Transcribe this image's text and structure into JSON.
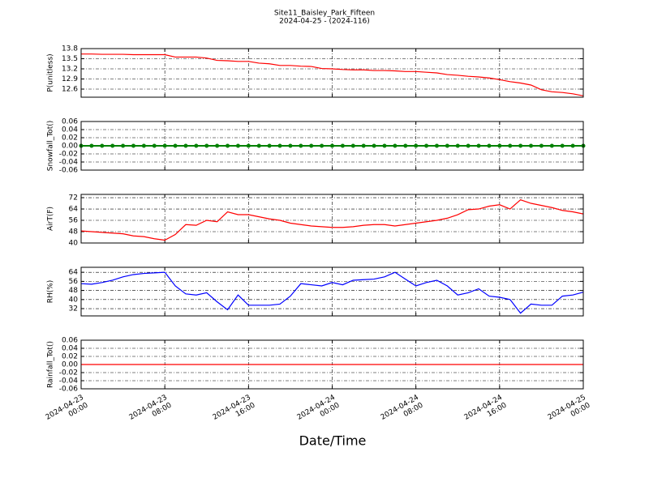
{
  "title": "Site11_Baisley_Park_Fifteen",
  "subtitle": "2024-04-25 - (2024-116)",
  "xlabel": "Date/Time",
  "chart_data": [
    {
      "type": "line",
      "ylabel": "P(unitless)",
      "ylim": [
        12.36,
        13.8
      ],
      "yticks": [
        12.6,
        12.9,
        13.2,
        13.5,
        13.8
      ],
      "grid": true,
      "xlim": [
        "2024-04-23 00:00",
        "2024-04-25 00:00"
      ],
      "xticks": [
        "2024-04-23 00:00",
        "2024-04-23 08:00",
        "2024-04-23 16:00",
        "2024-04-24 00:00",
        "2024-04-24 08:00",
        "2024-04-24 16:00",
        "2024-04-25 00:00"
      ],
      "x": [
        "2024-04-23 00:00",
        "2024-04-23 01:00",
        "2024-04-23 02:00",
        "2024-04-23 03:00",
        "2024-04-23 04:00",
        "2024-04-23 05:00",
        "2024-04-23 06:00",
        "2024-04-23 07:00",
        "2024-04-23 08:00",
        "2024-04-23 09:00",
        "2024-04-23 10:00",
        "2024-04-23 11:00",
        "2024-04-23 12:00",
        "2024-04-23 13:00",
        "2024-04-23 14:00",
        "2024-04-23 15:00",
        "2024-04-23 16:00",
        "2024-04-23 17:00",
        "2024-04-23 18:00",
        "2024-04-23 19:00",
        "2024-04-23 20:00",
        "2024-04-23 21:00",
        "2024-04-23 22:00",
        "2024-04-23 23:00",
        "2024-04-24 00:00",
        "2024-04-24 01:00",
        "2024-04-24 02:00",
        "2024-04-24 03:00",
        "2024-04-24 04:00",
        "2024-04-24 05:00",
        "2024-04-24 06:00",
        "2024-04-24 07:00",
        "2024-04-24 08:00",
        "2024-04-24 09:00",
        "2024-04-24 10:00",
        "2024-04-24 11:00",
        "2024-04-24 12:00",
        "2024-04-24 13:00",
        "2024-04-24 14:00",
        "2024-04-24 15:00",
        "2024-04-24 16:00",
        "2024-04-24 17:00",
        "2024-04-24 18:00",
        "2024-04-24 19:00",
        "2024-04-24 20:00",
        "2024-04-24 21:00",
        "2024-04-24 22:00",
        "2024-04-24 23:00",
        "2024-04-25 00:00"
      ],
      "series": [
        {
          "color": "#ff0000",
          "values": [
            13.64,
            13.64,
            13.63,
            13.63,
            13.63,
            13.62,
            13.62,
            13.62,
            13.62,
            13.55,
            13.55,
            13.55,
            13.52,
            13.45,
            13.44,
            13.42,
            13.42,
            13.37,
            13.35,
            13.3,
            13.3,
            13.28,
            13.27,
            13.21,
            13.2,
            13.18,
            13.17,
            13.17,
            13.15,
            13.15,
            13.14,
            13.12,
            13.12,
            13.1,
            13.08,
            13.03,
            13.01,
            12.98,
            12.96,
            12.93,
            12.88,
            12.82,
            12.78,
            12.72,
            12.58,
            12.52,
            12.5,
            12.46,
            12.4
          ]
        }
      ]
    },
    {
      "type": "line",
      "ylabel": "Snowfall_Tot()",
      "ylim": [
        -0.06,
        0.06
      ],
      "yticks": [
        -0.06,
        -0.04,
        -0.02,
        {
          "value": 0,
          "label": "0.00"
        },
        0.02,
        0.04,
        0.06
      ],
      "grid": true,
      "marker": "o",
      "xlim": [
        "2024-04-23 00:00",
        "2024-04-25 00:00"
      ],
      "xticks": [
        "2024-04-23 00:00",
        "2024-04-23 08:00",
        "2024-04-23 16:00",
        "2024-04-24 00:00",
        "2024-04-24 08:00",
        "2024-04-24 16:00",
        "2024-04-25 00:00"
      ],
      "x": [
        "2024-04-23 00:00",
        "2024-04-23 01:00",
        "2024-04-23 02:00",
        "2024-04-23 03:00",
        "2024-04-23 04:00",
        "2024-04-23 05:00",
        "2024-04-23 06:00",
        "2024-04-23 07:00",
        "2024-04-23 08:00",
        "2024-04-23 09:00",
        "2024-04-23 10:00",
        "2024-04-23 11:00",
        "2024-04-23 12:00",
        "2024-04-23 13:00",
        "2024-04-23 14:00",
        "2024-04-23 15:00",
        "2024-04-23 16:00",
        "2024-04-23 17:00",
        "2024-04-23 18:00",
        "2024-04-23 19:00",
        "2024-04-23 20:00",
        "2024-04-23 21:00",
        "2024-04-23 22:00",
        "2024-04-23 23:00",
        "2024-04-24 00:00",
        "2024-04-24 01:00",
        "2024-04-24 02:00",
        "2024-04-24 03:00",
        "2024-04-24 04:00",
        "2024-04-24 05:00",
        "2024-04-24 06:00",
        "2024-04-24 07:00",
        "2024-04-24 08:00",
        "2024-04-24 09:00",
        "2024-04-24 10:00",
        "2024-04-24 11:00",
        "2024-04-24 12:00",
        "2024-04-24 13:00",
        "2024-04-24 14:00",
        "2024-04-24 15:00",
        "2024-04-24 16:00",
        "2024-04-24 17:00",
        "2024-04-24 18:00",
        "2024-04-24 19:00",
        "2024-04-24 20:00",
        "2024-04-24 21:00",
        "2024-04-24 22:00",
        "2024-04-24 23:00",
        "2024-04-25 00:00"
      ],
      "series": [
        {
          "color": "#008000",
          "values": [
            0,
            0,
            0,
            0,
            0,
            0,
            0,
            0,
            0,
            0,
            0,
            0,
            0,
            0,
            0,
            0,
            0,
            0,
            0,
            0,
            0,
            0,
            0,
            0,
            0,
            0,
            0,
            0,
            0,
            0,
            0,
            0,
            0,
            0,
            0,
            0,
            0,
            0,
            0,
            0,
            0,
            0,
            0,
            0,
            0,
            0,
            0,
            0,
            0
          ]
        }
      ]
    },
    {
      "type": "line",
      "ylabel": "AirT(F)",
      "ylim": [
        40,
        74.3
      ],
      "yticks": [
        40,
        48,
        56,
        64,
        72
      ],
      "grid": true,
      "xlim": [
        "2024-04-23 00:00",
        "2024-04-25 00:00"
      ],
      "xticks": [
        "2024-04-23 00:00",
        "2024-04-23 08:00",
        "2024-04-23 16:00",
        "2024-04-24 00:00",
        "2024-04-24 08:00",
        "2024-04-24 16:00",
        "2024-04-25 00:00"
      ],
      "x": [
        "2024-04-23 00:00",
        "2024-04-23 01:00",
        "2024-04-23 02:00",
        "2024-04-23 03:00",
        "2024-04-23 04:00",
        "2024-04-23 05:00",
        "2024-04-23 06:00",
        "2024-04-23 07:00",
        "2024-04-23 08:00",
        "2024-04-23 09:00",
        "2024-04-23 10:00",
        "2024-04-23 11:00",
        "2024-04-23 12:00",
        "2024-04-23 13:00",
        "2024-04-23 14:00",
        "2024-04-23 15:00",
        "2024-04-23 16:00",
        "2024-04-23 17:00",
        "2024-04-23 18:00",
        "2024-04-23 19:00",
        "2024-04-23 20:00",
        "2024-04-23 21:00",
        "2024-04-23 22:00",
        "2024-04-23 23:00",
        "2024-04-24 00:00",
        "2024-04-24 01:00",
        "2024-04-24 02:00",
        "2024-04-24 03:00",
        "2024-04-24 04:00",
        "2024-04-24 05:00",
        "2024-04-24 06:00",
        "2024-04-24 07:00",
        "2024-04-24 08:00",
        "2024-04-24 09:00",
        "2024-04-24 10:00",
        "2024-04-24 11:00",
        "2024-04-24 12:00",
        "2024-04-24 13:00",
        "2024-04-24 14:00",
        "2024-04-24 15:00",
        "2024-04-24 16:00",
        "2024-04-24 17:00",
        "2024-04-24 18:00",
        "2024-04-24 19:00",
        "2024-04-24 20:00",
        "2024-04-24 21:00",
        "2024-04-24 22:00",
        "2024-04-24 23:00",
        "2024-04-25 00:00"
      ],
      "series": [
        {
          "color": "#ff0000",
          "values": [
            48.5,
            48,
            47.5,
            47,
            46.5,
            45,
            44.5,
            43,
            42,
            46,
            53,
            52.5,
            56,
            55,
            62,
            60,
            60,
            58.5,
            57,
            56,
            54,
            53,
            52,
            51.5,
            51,
            51,
            51.5,
            52.5,
            53,
            53,
            52,
            53,
            54,
            55,
            56,
            57.5,
            60,
            63.5,
            64,
            66,
            67,
            64,
            70.5,
            68,
            66.5,
            65,
            63,
            62,
            60.5
          ]
        }
      ]
    },
    {
      "type": "line",
      "ylabel": "RH(%)",
      "ylim": [
        25.6,
        68.4
      ],
      "yticks": [
        32,
        40,
        48,
        56,
        64
      ],
      "grid": true,
      "xlim": [
        "2024-04-23 00:00",
        "2024-04-25 00:00"
      ],
      "xticks": [
        "2024-04-23 00:00",
        "2024-04-23 08:00",
        "2024-04-23 16:00",
        "2024-04-24 00:00",
        "2024-04-24 08:00",
        "2024-04-24 16:00",
        "2024-04-25 00:00"
      ],
      "x": [
        "2024-04-23 00:00",
        "2024-04-23 01:00",
        "2024-04-23 02:00",
        "2024-04-23 03:00",
        "2024-04-23 04:00",
        "2024-04-23 05:00",
        "2024-04-23 06:00",
        "2024-04-23 07:00",
        "2024-04-23 08:00",
        "2024-04-23 09:00",
        "2024-04-23 10:00",
        "2024-04-23 11:00",
        "2024-04-23 12:00",
        "2024-04-23 13:00",
        "2024-04-23 14:00",
        "2024-04-23 15:00",
        "2024-04-23 16:00",
        "2024-04-23 17:00",
        "2024-04-23 18:00",
        "2024-04-23 19:00",
        "2024-04-23 20:00",
        "2024-04-23 21:00",
        "2024-04-23 22:00",
        "2024-04-23 23:00",
        "2024-04-24 00:00",
        "2024-04-24 01:00",
        "2024-04-24 02:00",
        "2024-04-24 03:00",
        "2024-04-24 04:00",
        "2024-04-24 05:00",
        "2024-04-24 06:00",
        "2024-04-24 07:00",
        "2024-04-24 08:00",
        "2024-04-24 09:00",
        "2024-04-24 10:00",
        "2024-04-24 11:00",
        "2024-04-24 12:00",
        "2024-04-24 13:00",
        "2024-04-24 14:00",
        "2024-04-24 15:00",
        "2024-04-24 16:00",
        "2024-04-24 17:00",
        "2024-04-24 18:00",
        "2024-04-24 19:00",
        "2024-04-24 20:00",
        "2024-04-24 21:00",
        "2024-04-24 22:00",
        "2024-04-24 23:00",
        "2024-04-25 00:00"
      ],
      "series": [
        {
          "color": "#0000ff",
          "values": [
            54,
            53.5,
            55,
            57,
            60,
            62,
            63,
            63.5,
            64,
            52,
            45,
            44,
            46,
            38,
            31,
            44,
            35,
            35,
            35,
            36,
            43,
            54,
            53,
            52,
            55,
            53,
            57,
            57.5,
            58,
            60,
            64,
            58,
            52,
            55,
            57,
            52,
            44,
            46,
            49.5,
            43,
            42,
            40,
            28,
            36,
            35,
            35,
            43,
            44,
            46.5
          ]
        }
      ]
    },
    {
      "type": "line",
      "ylabel": "Rainfall_Tot()",
      "ylim": [
        -0.06,
        0.06
      ],
      "yticks": [
        -0.06,
        -0.04,
        -0.02,
        {
          "value": 0,
          "label": "0.00"
        },
        0.02,
        0.04,
        0.06
      ],
      "grid": true,
      "xlim": [
        "2024-04-23 00:00",
        "2024-04-25 00:00"
      ],
      "xticks": [
        "2024-04-23 00:00",
        "2024-04-23 08:00",
        "2024-04-23 16:00",
        "2024-04-24 00:00",
        "2024-04-24 08:00",
        "2024-04-24 16:00",
        "2024-04-25 00:00"
      ],
      "x": [
        "2024-04-23 00:00",
        "2024-04-23 01:00",
        "2024-04-23 02:00",
        "2024-04-23 03:00",
        "2024-04-23 04:00",
        "2024-04-23 05:00",
        "2024-04-23 06:00",
        "2024-04-23 07:00",
        "2024-04-23 08:00",
        "2024-04-23 09:00",
        "2024-04-23 10:00",
        "2024-04-23 11:00",
        "2024-04-23 12:00",
        "2024-04-23 13:00",
        "2024-04-23 14:00",
        "2024-04-23 15:00",
        "2024-04-23 16:00",
        "2024-04-23 17:00",
        "2024-04-23 18:00",
        "2024-04-23 19:00",
        "2024-04-23 20:00",
        "2024-04-23 21:00",
        "2024-04-23 22:00",
        "2024-04-23 23:00",
        "2024-04-24 00:00",
        "2024-04-24 01:00",
        "2024-04-24 02:00",
        "2024-04-24 03:00",
        "2024-04-24 04:00",
        "2024-04-24 05:00",
        "2024-04-24 06:00",
        "2024-04-24 07:00",
        "2024-04-24 08:00",
        "2024-04-24 09:00",
        "2024-04-24 10:00",
        "2024-04-24 11:00",
        "2024-04-24 12:00",
        "2024-04-24 13:00",
        "2024-04-24 14:00",
        "2024-04-24 15:00",
        "2024-04-24 16:00",
        "2024-04-24 17:00",
        "2024-04-24 18:00",
        "2024-04-24 19:00",
        "2024-04-24 20:00",
        "2024-04-24 21:00",
        "2024-04-24 22:00",
        "2024-04-24 23:00",
        "2024-04-25 00:00"
      ],
      "series": [
        {
          "color": "#ff0000",
          "values": [
            0,
            0,
            0,
            0,
            0,
            0,
            0,
            0,
            0,
            0,
            0,
            0,
            0,
            0,
            0,
            0,
            0,
            0,
            0,
            0,
            0,
            0,
            0,
            0,
            0,
            0,
            0,
            0,
            0,
            0,
            0,
            0,
            0,
            0,
            0,
            0,
            0,
            0,
            0,
            0,
            0,
            0,
            0,
            0,
            0,
            0,
            0,
            0,
            0
          ]
        }
      ]
    }
  ]
}
